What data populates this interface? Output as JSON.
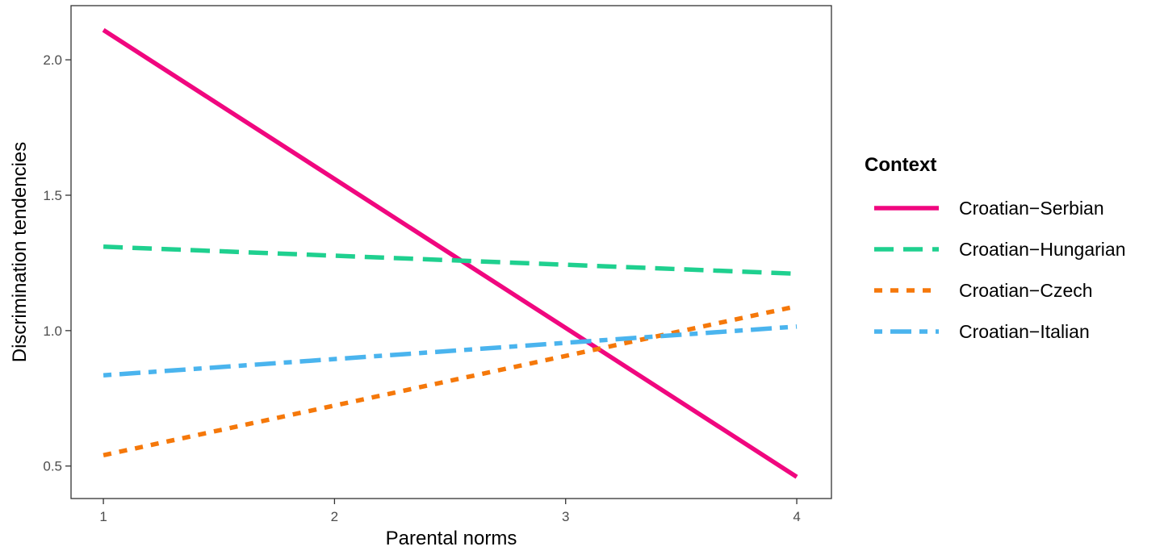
{
  "chart_data": {
    "type": "line",
    "title": "",
    "xlabel": "Parental norms",
    "ylabel": "Discrimination tendencies",
    "xlim": [
      0.86,
      4.15
    ],
    "ylim": [
      0.38,
      2.2
    ],
    "x_ticks": [
      1,
      2,
      3,
      4
    ],
    "y_ticks": [
      0.5,
      1.0,
      1.5,
      2.0
    ],
    "x_tick_labels": [
      "1",
      "2",
      "3",
      "4"
    ],
    "y_tick_labels": [
      "0.5",
      "1.0",
      "1.5",
      "2.0"
    ],
    "grid": false,
    "legend": {
      "title": "Context",
      "placement": "right"
    },
    "series": [
      {
        "name": "Croatian−Serbian",
        "color": "#f0077f",
        "dash": "solid",
        "x": [
          1,
          4
        ],
        "y": [
          2.11,
          0.46
        ]
      },
      {
        "name": "Croatian−Hungarian",
        "color": "#1fd08f",
        "dash": "dashed",
        "x": [
          1,
          4
        ],
        "y": [
          1.31,
          1.21
        ]
      },
      {
        "name": "Croatian−Czech",
        "color": "#f5780a",
        "dash": "dotted",
        "x": [
          1,
          4
        ],
        "y": [
          0.54,
          1.09
        ]
      },
      {
        "name": "Croatian−Italian",
        "color": "#4ab4ee",
        "dash": "dotdash",
        "x": [
          1,
          4
        ],
        "y": [
          0.835,
          1.015
        ]
      }
    ]
  }
}
